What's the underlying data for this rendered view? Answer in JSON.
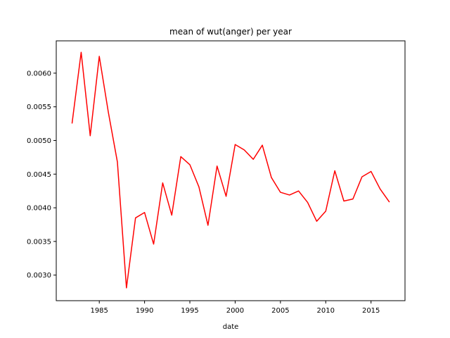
{
  "chart_data": {
    "type": "line",
    "title": "mean of wut(anger) per year",
    "xlabel": "date",
    "ylabel": "",
    "xlim": [
      1980.25,
      2018.75
    ],
    "ylim": [
      0.00262,
      0.00648
    ],
    "xticks": [
      1985,
      1990,
      1995,
      2000,
      2005,
      2010,
      2015
    ],
    "xtick_labels": [
      "1985",
      "1990",
      "1995",
      "2000",
      "2005",
      "2010",
      "2015"
    ],
    "yticks": [
      0.003,
      0.0035,
      0.004,
      0.0045,
      0.005,
      0.0055,
      0.006
    ],
    "ytick_labels": [
      "0.0030",
      "0.0035",
      "0.0040",
      "0.0045",
      "0.0050",
      "0.0055",
      "0.0060"
    ],
    "grid": false,
    "series": [
      {
        "color": "#ff0000",
        "x": [
          1982,
          1983,
          1984,
          1985,
          1986,
          1987,
          1988,
          1989,
          1990,
          1991,
          1992,
          1993,
          1994,
          1995,
          1996,
          1997,
          1998,
          1999,
          2000,
          2001,
          2002,
          2003,
          2004,
          2005,
          2006,
          2007,
          2008,
          2009,
          2010,
          2011,
          2012,
          2013,
          2014,
          2015,
          2016,
          2017
        ],
        "y": [
          0.00526,
          0.00631,
          0.00507,
          0.00625,
          0.00542,
          0.00468,
          0.00281,
          0.00385,
          0.00393,
          0.00346,
          0.00437,
          0.00389,
          0.00476,
          0.00464,
          0.00431,
          0.00374,
          0.00462,
          0.00417,
          0.00494,
          0.00486,
          0.00472,
          0.00493,
          0.00445,
          0.00423,
          0.00419,
          0.00425,
          0.00408,
          0.0038,
          0.00395,
          0.00455,
          0.0041,
          0.00413,
          0.00446,
          0.00454,
          0.00428,
          0.00409
        ]
      }
    ]
  }
}
